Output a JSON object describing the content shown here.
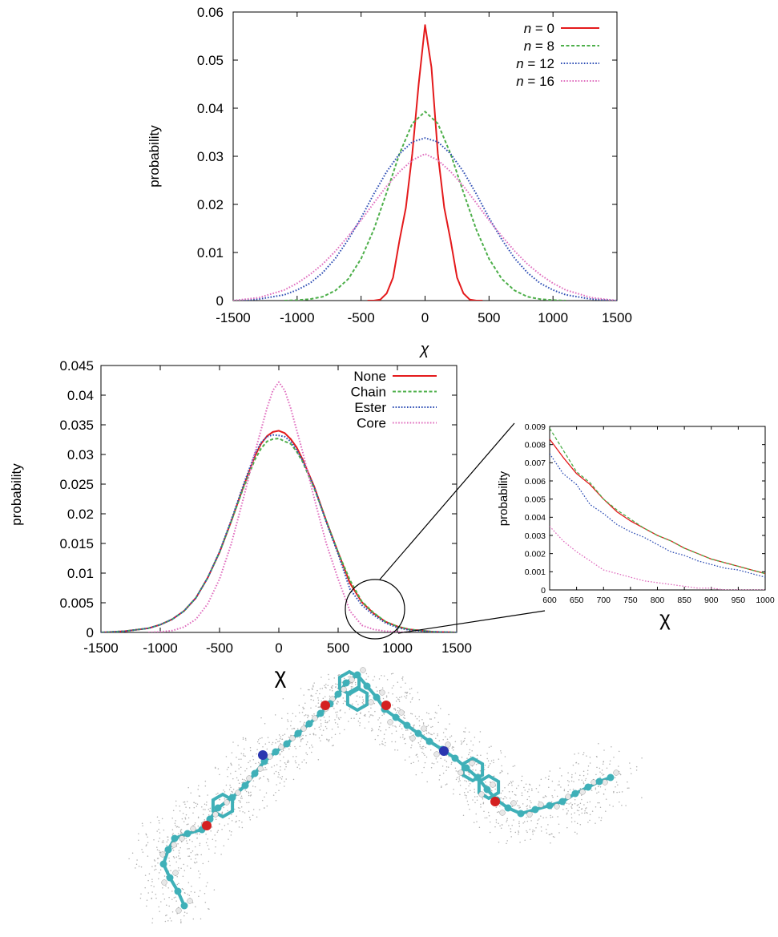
{
  "chart_data": [
    {
      "type": "line",
      "xlabel": "χ",
      "ylabel": "probability",
      "xlim": [
        -1500,
        1500
      ],
      "ylim": [
        0,
        0.06
      ],
      "xticks": [
        "-1500",
        "-1000",
        "-500",
        "0",
        "500",
        "1000",
        "1500"
      ],
      "yticks": [
        "0",
        "0.01",
        "0.02",
        "0.03",
        "0.04",
        "0.05",
        "0.06"
      ],
      "xtick_values": [
        -1500,
        -1000,
        -500,
        0,
        500,
        1000,
        1500
      ],
      "ytick_values": [
        0,
        0.01,
        0.02,
        0.03,
        0.04,
        0.05,
        0.06
      ],
      "legend_position": "top-right",
      "series": [
        {
          "name": "n = 0",
          "legend_var": "n",
          "legend_rest": " = 0",
          "color": "#e41a1c",
          "dash": "solid",
          "x": [
            -450,
            -400,
            -350,
            -300,
            -250,
            -200,
            -150,
            -100,
            -50,
            0,
            50,
            100,
            150,
            200,
            250,
            300,
            350,
            400,
            450
          ],
          "y": [
            0,
            0,
            0.0002,
            0.0015,
            0.0048,
            0.0125,
            0.0193,
            0.0305,
            0.045,
            0.0573,
            0.0485,
            0.0305,
            0.0193,
            0.0125,
            0.0048,
            0.0015,
            0.0002,
            0,
            0
          ]
        },
        {
          "name": "n = 8",
          "legend_var": "n",
          "legend_rest": " = 8",
          "color": "#4daf4a",
          "dash": "dashed",
          "x": [
            -1100,
            -1000,
            -900,
            -800,
            -700,
            -600,
            -500,
            -400,
            -300,
            -200,
            -100,
            0,
            100,
            200,
            300,
            400,
            500,
            600,
            700,
            800,
            900,
            1000,
            1100
          ],
          "y": [
            0,
            0.0001,
            0.0003,
            0.0008,
            0.0021,
            0.0045,
            0.0087,
            0.0148,
            0.0225,
            0.0305,
            0.0368,
            0.0393,
            0.0368,
            0.0305,
            0.0225,
            0.0148,
            0.0087,
            0.0045,
            0.0021,
            0.0008,
            0.0003,
            0.0001,
            0
          ]
        },
        {
          "name": "n = 12",
          "legend_var": "n",
          "legend_rest": " = 12",
          "color": "#2f4fb5",
          "dash": "dotted",
          "x": [
            -1500,
            -1300,
            -1100,
            -1000,
            -900,
            -800,
            -700,
            -600,
            -500,
            -400,
            -300,
            -200,
            -100,
            0,
            100,
            200,
            300,
            400,
            500,
            600,
            700,
            800,
            900,
            1000,
            1100,
            1300,
            1500
          ],
          "y": [
            0,
            0.0003,
            0.0012,
            0.0022,
            0.0036,
            0.0058,
            0.0088,
            0.0127,
            0.0172,
            0.0222,
            0.0268,
            0.0305,
            0.033,
            0.0338,
            0.033,
            0.0305,
            0.0268,
            0.0222,
            0.0172,
            0.0127,
            0.0088,
            0.0058,
            0.0036,
            0.0022,
            0.0012,
            0.0003,
            0
          ]
        },
        {
          "name": "n = 16",
          "legend_var": "n",
          "legend_rest": " = 16",
          "color": "#e06fbf",
          "dash": "dotted",
          "x": [
            -1500,
            -1300,
            -1100,
            -1000,
            -900,
            -800,
            -700,
            -600,
            -500,
            -400,
            -300,
            -200,
            -100,
            0,
            100,
            200,
            300,
            400,
            500,
            600,
            700,
            800,
            900,
            1000,
            1100,
            1300,
            1500
          ],
          "y": [
            0,
            0.0006,
            0.0022,
            0.0036,
            0.0054,
            0.0076,
            0.0103,
            0.0134,
            0.0167,
            0.0203,
            0.0238,
            0.0268,
            0.0292,
            0.0305,
            0.0292,
            0.0268,
            0.0238,
            0.0203,
            0.0167,
            0.0134,
            0.0103,
            0.0076,
            0.0054,
            0.0036,
            0.0022,
            0.0006,
            0
          ]
        }
      ]
    },
    {
      "type": "line",
      "xlabel": "χ",
      "ylabel": "probability",
      "xlim": [
        -1500,
        1500
      ],
      "ylim": [
        0,
        0.045
      ],
      "xticks": [
        "-1500",
        "-1000",
        "-500",
        "0",
        "500",
        "1000",
        "1500"
      ],
      "yticks": [
        "0",
        "0.005",
        "0.01",
        "0.015",
        "0.02",
        "0.025",
        "0.03",
        "0.035",
        "0.04",
        "0.045"
      ],
      "xtick_values": [
        -1500,
        -1000,
        -500,
        0,
        500,
        1000,
        1500
      ],
      "ytick_values": [
        0,
        0.005,
        0.01,
        0.015,
        0.02,
        0.025,
        0.03,
        0.035,
        0.04,
        0.045
      ],
      "legend_position": "top-right",
      "annotation": "circled region around χ = 800 enlarged in inset",
      "series": [
        {
          "name": "None",
          "color": "#e41a1c",
          "dash": "solid",
          "x": [
            -1500,
            -1300,
            -1100,
            -1000,
            -900,
            -800,
            -700,
            -600,
            -500,
            -400,
            -300,
            -200,
            -150,
            -100,
            -50,
            0,
            50,
            100,
            150,
            200,
            300,
            400,
            500,
            600,
            700,
            800,
            900,
            1000,
            1100,
            1300,
            1500
          ],
          "y": [
            0,
            0.0002,
            0.0007,
            0.0013,
            0.0022,
            0.0036,
            0.0058,
            0.0092,
            0.0135,
            0.0188,
            0.0245,
            0.0298,
            0.0318,
            0.0331,
            0.0338,
            0.034,
            0.0336,
            0.0326,
            0.0312,
            0.0292,
            0.0245,
            0.0188,
            0.0135,
            0.0083,
            0.0051,
            0.0032,
            0.0018,
            0.001,
            0.0005,
            0.0001,
            0
          ]
        },
        {
          "name": "Chain",
          "color": "#4daf4a",
          "dash": "dashed",
          "x": [
            -1500,
            -1300,
            -1100,
            -1000,
            -900,
            -800,
            -700,
            -600,
            -500,
            -400,
            -300,
            -200,
            -150,
            -100,
            -50,
            0,
            50,
            100,
            150,
            200,
            300,
            400,
            500,
            600,
            700,
            800,
            900,
            1000,
            1100,
            1300,
            1500
          ],
          "y": [
            0,
            0.0002,
            0.0007,
            0.0013,
            0.0022,
            0.0036,
            0.0058,
            0.0092,
            0.0135,
            0.0188,
            0.0243,
            0.0292,
            0.031,
            0.0322,
            0.0326,
            0.0327,
            0.0322,
            0.0318,
            0.0305,
            0.0288,
            0.0242,
            0.0188,
            0.0135,
            0.0088,
            0.0052,
            0.0033,
            0.0018,
            0.001,
            0.0005,
            0.0001,
            0
          ]
        },
        {
          "name": "Ester",
          "color": "#2f4fb5",
          "dash": "dotted",
          "x": [
            -1500,
            -1300,
            -1100,
            -1000,
            -900,
            -800,
            -700,
            -600,
            -500,
            -400,
            -300,
            -200,
            -150,
            -100,
            -50,
            0,
            50,
            100,
            150,
            200,
            300,
            400,
            500,
            600,
            700,
            800,
            900,
            1000,
            1100,
            1300,
            1500
          ],
          "y": [
            0,
            0.0002,
            0.0007,
            0.0013,
            0.0022,
            0.0036,
            0.0058,
            0.0092,
            0.0136,
            0.019,
            0.0248,
            0.0302,
            0.032,
            0.033,
            0.0333,
            0.0332,
            0.033,
            0.0322,
            0.0308,
            0.029,
            0.0244,
            0.0186,
            0.0132,
            0.0073,
            0.0046,
            0.0029,
            0.0016,
            0.0008,
            0.0004,
            0.0001,
            0
          ]
        },
        {
          "name": "Core",
          "color": "#e06fbf",
          "dash": "dotted",
          "x": [
            -1100,
            -1000,
            -900,
            -800,
            -700,
            -600,
            -500,
            -400,
            -300,
            -200,
            -100,
            -50,
            0,
            50,
            100,
            200,
            300,
            400,
            500,
            600,
            700,
            800,
            900,
            1000,
            1100
          ],
          "y": [
            0,
            0.0001,
            0.0003,
            0.0009,
            0.0022,
            0.0048,
            0.009,
            0.015,
            0.0225,
            0.0305,
            0.0378,
            0.0408,
            0.0422,
            0.0408,
            0.0378,
            0.0305,
            0.0225,
            0.015,
            0.009,
            0.0036,
            0.0012,
            0.0005,
            0.0002,
            0.0001,
            0
          ]
        }
      ]
    },
    {
      "type": "line",
      "xlabel": "χ",
      "ylabel": "probability",
      "xlim": [
        600,
        1000
      ],
      "ylim": [
        0,
        0.009
      ],
      "xticks": [
        "600",
        "650",
        "700",
        "750",
        "800",
        "850",
        "900",
        "950",
        "1000"
      ],
      "yticks": [
        "0",
        "0.001",
        "0.002",
        "0.003",
        "0.004",
        "0.005",
        "0.006",
        "0.007",
        "0.008",
        "0.009"
      ],
      "xtick_values": [
        600,
        650,
        700,
        750,
        800,
        850,
        900,
        950,
        1000
      ],
      "ytick_values": [
        0,
        0.001,
        0.002,
        0.003,
        0.004,
        0.005,
        0.006,
        0.007,
        0.008,
        0.009
      ],
      "series": [
        {
          "name": "None",
          "color": "#e41a1c",
          "dash": "solid",
          "x": [
            600,
            625,
            650,
            675,
            700,
            725,
            750,
            775,
            800,
            825,
            850,
            875,
            900,
            925,
            950,
            975,
            1000
          ],
          "y": [
            0.0083,
            0.0073,
            0.0064,
            0.0058,
            0.005,
            0.0043,
            0.0038,
            0.0034,
            0.003,
            0.0027,
            0.0023,
            0.002,
            0.0017,
            0.0015,
            0.0013,
            0.0011,
            0.0009
          ]
        },
        {
          "name": "Chain",
          "color": "#4daf4a",
          "dash": "dashed",
          "x": [
            600,
            625,
            650,
            675,
            700,
            725,
            750,
            775,
            800,
            825,
            850,
            875,
            900,
            925,
            950,
            975,
            1000
          ],
          "y": [
            0.0089,
            0.0077,
            0.0065,
            0.0059,
            0.005,
            0.0044,
            0.0039,
            0.0034,
            0.003,
            0.0027,
            0.0023,
            0.002,
            0.0017,
            0.0015,
            0.0013,
            0.0011,
            0.0009
          ]
        },
        {
          "name": "Ester",
          "color": "#2f4fb5",
          "dash": "dotted",
          "x": [
            600,
            625,
            650,
            675,
            700,
            725,
            750,
            775,
            800,
            825,
            850,
            875,
            900,
            925,
            950,
            975,
            1000
          ],
          "y": [
            0.0075,
            0.0064,
            0.0058,
            0.0047,
            0.0042,
            0.0036,
            0.0032,
            0.0029,
            0.0025,
            0.0021,
            0.0019,
            0.0016,
            0.0014,
            0.0012,
            0.0011,
            0.0009,
            0.0007
          ]
        },
        {
          "name": "Core",
          "color": "#e06fbf",
          "dash": "dotted",
          "x": [
            600,
            625,
            650,
            675,
            700,
            725,
            750,
            775,
            800,
            825,
            850,
            875,
            900,
            925,
            950,
            975,
            1000
          ],
          "y": [
            0.0035,
            0.0027,
            0.0021,
            0.0016,
            0.0011,
            0.0009,
            0.0007,
            0.0005,
            0.0004,
            0.0003,
            0.0002,
            0.0001,
            0.0001,
            0,
            0,
            0,
            0
          ]
        }
      ]
    }
  ],
  "molecule": {
    "description_color_carbon": "#3fb0b8",
    "color_oxygen": "#d42020",
    "color_nitrogen": "#2a36b0",
    "color_hydrogen": "#e8e8e8",
    "color_surface": "#b0b0b0"
  }
}
